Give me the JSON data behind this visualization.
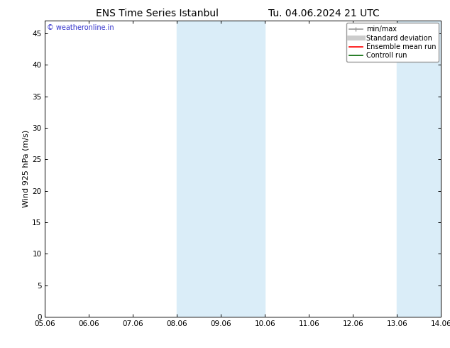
{
  "title_left": "ENS Time Series Istanbul",
  "title_right": "Tu. 04.06.2024 21 UTC",
  "ylabel": "Wind 925 hPa (m/s)",
  "ylim": [
    0,
    47
  ],
  "yticks": [
    0,
    5,
    10,
    15,
    20,
    25,
    30,
    35,
    40,
    45
  ],
  "xlim_start": 0,
  "xlim_end": 9,
  "xtick_labels": [
    "05.06",
    "06.06",
    "07.06",
    "08.06",
    "09.06",
    "10.06",
    "11.06",
    "12.06",
    "13.06",
    "14.06"
  ],
  "shade_bands": [
    {
      "xmin": 3.0,
      "xmax": 4.0,
      "color": "#daedf8"
    },
    {
      "xmin": 4.0,
      "xmax": 5.0,
      "color": "#daedf8"
    },
    {
      "xmin": 8.0,
      "xmax": 9.0,
      "color": "#daedf8"
    }
  ],
  "watermark": "© weatheronline.in",
  "watermark_color": "#3333cc",
  "legend_items": [
    {
      "label": "min/max",
      "color": "#999999",
      "lw": 1.2,
      "style": "minmax"
    },
    {
      "label": "Standard deviation",
      "color": "#cccccc",
      "lw": 5,
      "style": "thick"
    },
    {
      "label": "Ensemble mean run",
      "color": "#ff0000",
      "lw": 1.2,
      "style": "line"
    },
    {
      "label": "Controll run",
      "color": "#006600",
      "lw": 1.2,
      "style": "line"
    }
  ],
  "background_color": "#ffffff",
  "title_fontsize": 10,
  "axis_label_fontsize": 8,
  "tick_fontsize": 7.5,
  "legend_fontsize": 7,
  "watermark_fontsize": 7
}
